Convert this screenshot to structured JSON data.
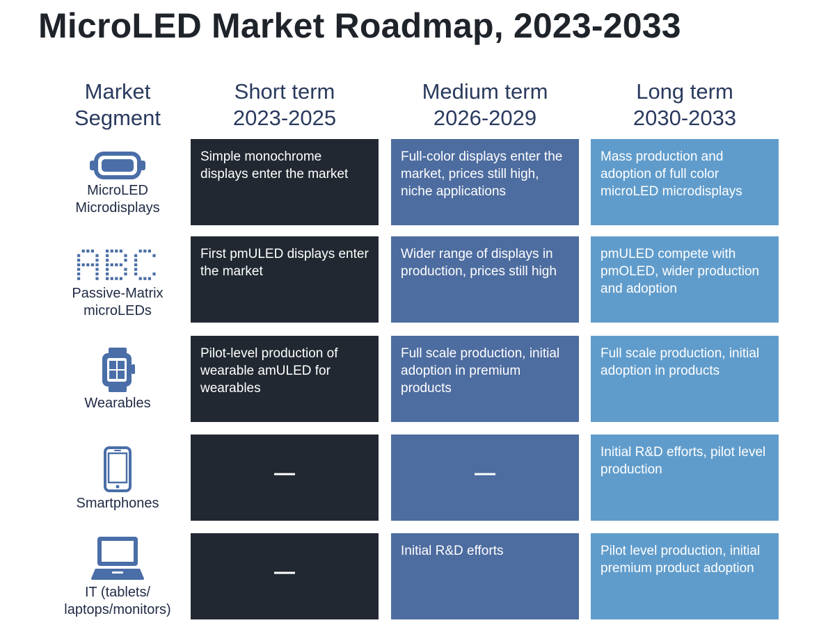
{
  "title": "MicroLED Market Roadmap, 2023-2033",
  "headers": {
    "segment": [
      "Market",
      "Segment"
    ],
    "short": [
      "Short term",
      "2023-2025"
    ],
    "medium": [
      "Medium term",
      "2026-2029"
    ],
    "long": [
      "Long term",
      "2030-2033"
    ]
  },
  "colors": {
    "short": "#212831",
    "medium": "#4d6c9f",
    "long": "#609ccb",
    "icon": "#4a6ea7"
  },
  "rows": [
    {
      "icon": "vr-headset-icon",
      "label": [
        "MicroLED",
        "Microdisplays"
      ],
      "short": "Simple monochrome displays enter the market",
      "medium": "Full-color displays enter the market, prices still high, niche applications",
      "long": "Mass production and adoption of full color microLED microdisplays"
    },
    {
      "icon": "dot-matrix-abc-icon",
      "label": [
        "Passive-Matrix",
        "microLEDs"
      ],
      "short": "First pmULED displays enter the market",
      "medium": "Wider range of displays in production, prices still high",
      "long": "pmULED compete with pmOLED, wider production and adoption"
    },
    {
      "icon": "smartwatch-icon",
      "label": [
        "Wearables"
      ],
      "short": "Pilot-level production of wearable amULED for wearables",
      "medium": "Full scale production, initial adoption in premium products",
      "long": "Full scale production, initial adoption in products"
    },
    {
      "icon": "smartphone-icon",
      "label": [
        "Smartphones"
      ],
      "short": "—",
      "medium": "—",
      "long": "Initial R&D efforts, pilot level production"
    },
    {
      "icon": "laptop-icon",
      "label": [
        "IT (tablets/",
        "laptops/monitors)"
      ],
      "short": "—",
      "medium": "Initial R&D efforts",
      "long": "Pilot level production, initial premium product adoption"
    }
  ]
}
